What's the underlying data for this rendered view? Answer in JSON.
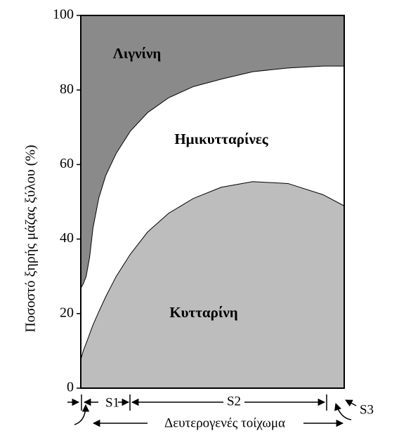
{
  "chart_data": {
    "type": "stacked-area",
    "y_label": "Ποσοστό ξηρής μάζας ξύλου (%)",
    "x": [
      0,
      0.8,
      1.9,
      3.2,
      4.5,
      6.7,
      9.3,
      13.3,
      18.7,
      25.3,
      33.3,
      42.7,
      53.3,
      65.3,
      78.7,
      92,
      100
    ],
    "xlim": [
      0,
      100
    ],
    "ylim": [
      0,
      100
    ],
    "yticks": [
      0,
      20,
      40,
      60,
      80,
      100
    ],
    "series": [
      {
        "name": "Κυτταρίνη",
        "color": "#bdbdbd",
        "values": [
          8,
          10,
          12,
          14.5,
          17,
          20.5,
          24.5,
          30,
          36,
          42,
          47,
          51,
          54,
          55.5,
          55,
          52,
          49
        ]
      },
      {
        "name": "Ημικυτταρίνες",
        "color": "#ffffff",
        "values": [
          19,
          18,
          18,
          20.5,
          26,
          30.5,
          32.5,
          33,
          33,
          32,
          31,
          30,
          29,
          29.5,
          31,
          34.5,
          37.5
        ]
      },
      {
        "name": "Λιγνίνη",
        "color": "#8a8a8a",
        "values": [
          73,
          72,
          70,
          65,
          57,
          49,
          43,
          37,
          31,
          26,
          22,
          19,
          17,
          15,
          14,
          13.5,
          13.5
        ]
      }
    ],
    "annotations": [
      "S1",
      "S2",
      "S3",
      "Δευτερογενές τοίχωμα"
    ]
  }
}
